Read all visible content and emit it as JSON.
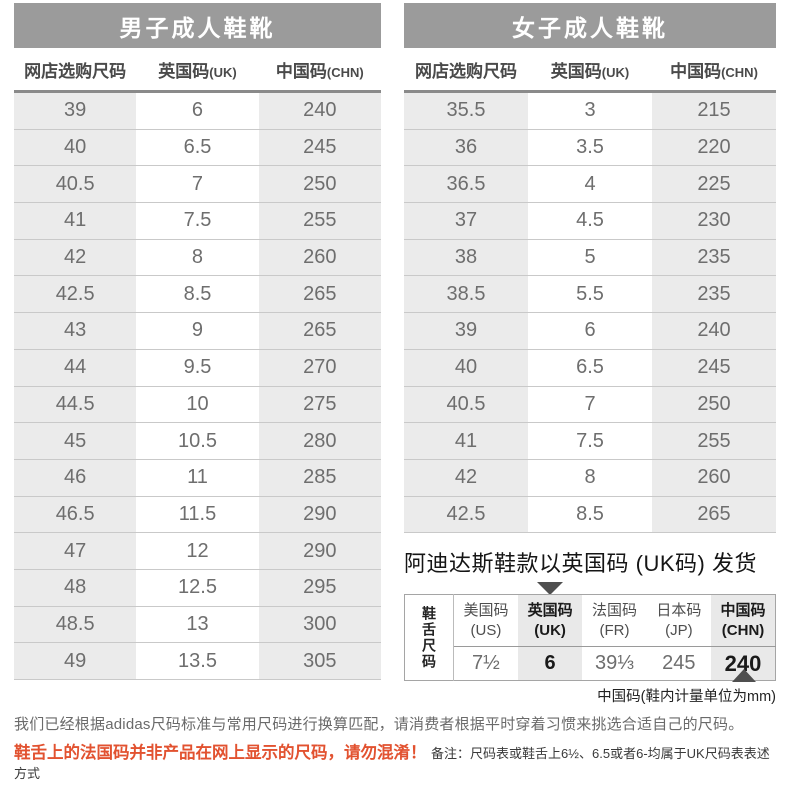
{
  "men_table": {
    "title": "男子成人鞋靴",
    "headers": [
      {
        "cn": "网店选购尺码",
        "en": ""
      },
      {
        "cn": "英国码",
        "en": "(UK)"
      },
      {
        "cn": "中国码",
        "en": "(CHN)"
      }
    ],
    "rows": [
      [
        "39",
        "6",
        "240"
      ],
      [
        "40",
        "6.5",
        "245"
      ],
      [
        "40.5",
        "7",
        "250"
      ],
      [
        "41",
        "7.5",
        "255"
      ],
      [
        "42",
        "8",
        "260"
      ],
      [
        "42.5",
        "8.5",
        "265"
      ],
      [
        "43",
        "9",
        "265"
      ],
      [
        "44",
        "9.5",
        "270"
      ],
      [
        "44.5",
        "10",
        "275"
      ],
      [
        "45",
        "10.5",
        "280"
      ],
      [
        "46",
        "11",
        "285"
      ],
      [
        "46.5",
        "11.5",
        "290"
      ],
      [
        "47",
        "12",
        "290"
      ],
      [
        "48",
        "12.5",
        "295"
      ],
      [
        "48.5",
        "13",
        "300"
      ],
      [
        "49",
        "13.5",
        "305"
      ]
    ]
  },
  "women_table": {
    "title": "女子成人鞋靴",
    "headers": [
      {
        "cn": "网店选购尺码",
        "en": ""
      },
      {
        "cn": "英国码",
        "en": "(UK)"
      },
      {
        "cn": "中国码",
        "en": "(CHN)"
      }
    ],
    "rows": [
      [
        "35.5",
        "3",
        "215"
      ],
      [
        "36",
        "3.5",
        "220"
      ],
      [
        "36.5",
        "4",
        "225"
      ],
      [
        "37",
        "4.5",
        "230"
      ],
      [
        "38",
        "5",
        "235"
      ],
      [
        "38.5",
        "5.5",
        "235"
      ],
      [
        "39",
        "6",
        "240"
      ],
      [
        "40",
        "6.5",
        "245"
      ],
      [
        "40.5",
        "7",
        "250"
      ],
      [
        "41",
        "7.5",
        "255"
      ],
      [
        "42",
        "8",
        "260"
      ],
      [
        "42.5",
        "8.5",
        "265"
      ]
    ]
  },
  "shipping": {
    "headline": "阿迪达斯鞋款以英国码 (UK码) 发货"
  },
  "tongue_table": {
    "side_label": "鞋舌尺码",
    "columns": [
      {
        "name": "美国码",
        "code": "(US)",
        "value": "7½"
      },
      {
        "name": "英国码",
        "code": "(UK)",
        "value": "6"
      },
      {
        "name": "法国码",
        "code": "(FR)",
        "value": "39⅓"
      },
      {
        "name": "日本码",
        "code": "(JP)",
        "value": "245"
      },
      {
        "name": "中国码",
        "code": "(CHN)",
        "value": "240"
      }
    ],
    "caption": "中国码(鞋内计量单位为mm)"
  },
  "footer": {
    "line1": "我们已经根据adidas尺码标准与常用尺码进行换算匹配，请消费者根据平时穿着习惯来挑选合适自己的尺码。",
    "warning": "鞋舌上的法国码并非产品在网上显示的尺码，请勿混淆！",
    "note": "备注：尺码表或鞋舌上6½、6.5或者6-均属于UK尺码表表述方式"
  },
  "colors": {
    "title_bar_gray": "#9b9b9b",
    "shaded_cell_gray": "#ebebeb",
    "warning_red": "#e25230"
  }
}
